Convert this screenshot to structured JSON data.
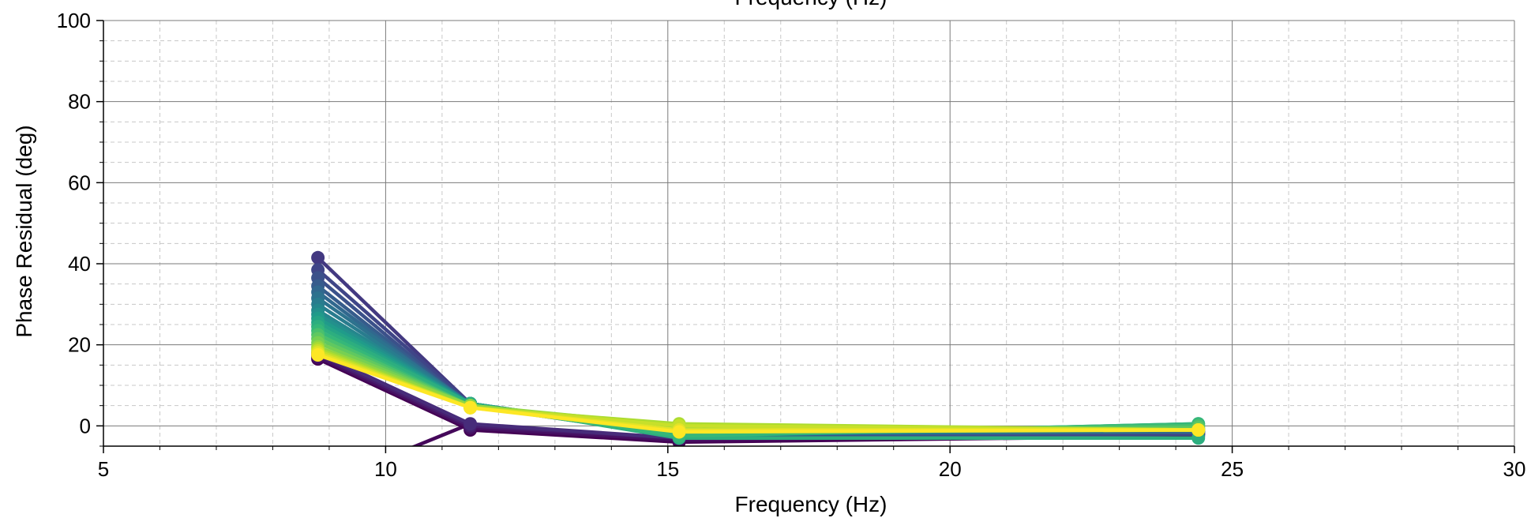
{
  "chart_data": {
    "type": "line",
    "title": "Frequency (Hz)",
    "xlabel": "Frequency (Hz)",
    "ylabel": "Phase Residual (deg)",
    "xlim": [
      5,
      30
    ],
    "ylim": [
      -5,
      100
    ],
    "x_ticks": [
      "5",
      "10",
      "15",
      "20",
      "25",
      "30"
    ],
    "y_ticks": [
      "0",
      "20",
      "40",
      "60",
      "80",
      "100"
    ],
    "x_major": [
      5,
      10,
      15,
      20,
      25,
      30
    ],
    "y_major": [
      0,
      20,
      40,
      60,
      80,
      100
    ],
    "x_minor_step": 1,
    "y_minor_step": 5,
    "grid": true,
    "colormap": [
      "#440154",
      "#482878",
      "#3e4989",
      "#31688e",
      "#26828e",
      "#1f9e89",
      "#35b779",
      "#6ece58",
      "#b5de2b",
      "#fde725"
    ],
    "x": [
      8.8,
      11.5,
      15.2,
      24.4
    ],
    "series": [
      {
        "values": [
          16.5,
          -1.0,
          -4.0,
          -2.5
        ]
      },
      {
        "values": [
          17.0,
          -0.5,
          -3.5,
          -2.0
        ]
      },
      {
        "values": [
          17.5,
          0.0,
          -3.0,
          -2.0
        ]
      },
      {
        "values": [
          18.0,
          0.5,
          -3.0,
          -1.5
        ]
      },
      {
        "values": [
          41.5,
          5.5,
          -2.5,
          -2.0
        ]
      },
      {
        "values": [
          38.5,
          5.5,
          -2.5,
          -2.0
        ]
      },
      {
        "values": [
          36.5,
          5.0,
          -2.5,
          -1.5
        ]
      },
      {
        "values": [
          34.5,
          5.0,
          -2.0,
          -1.5
        ]
      },
      {
        "values": [
          33.0,
          5.0,
          -2.0,
          -1.5
        ]
      },
      {
        "values": [
          31.5,
          5.5,
          -2.0,
          -1.0
        ]
      },
      {
        "values": [
          30.0,
          5.5,
          -2.0,
          -1.0
        ]
      },
      {
        "values": [
          28.5,
          5.5,
          -2.0,
          -1.0
        ]
      },
      {
        "values": [
          27.5,
          5.5,
          -2.0,
          -0.5
        ]
      },
      {
        "values": [
          26.5,
          5.5,
          -2.5,
          0.0
        ]
      },
      {
        "values": [
          25.5,
          5.5,
          -2.5,
          0.5
        ]
      },
      {
        "values": [
          24.5,
          5.5,
          -3.0,
          -3.0
        ]
      },
      {
        "values": [
          23.5,
          5.0,
          -2.5,
          0.5
        ]
      },
      {
        "values": [
          22.5,
          5.0,
          -1.5,
          0.0
        ]
      },
      {
        "values": [
          21.5,
          5.0,
          -1.0,
          -0.5
        ]
      },
      {
        "values": [
          20.5,
          5.0,
          -0.5,
          -1.0
        ]
      },
      {
        "values": [
          19.5,
          5.0,
          0.0,
          -1.0
        ]
      },
      {
        "values": [
          19.0,
          4.5,
          0.5,
          -1.0
        ]
      },
      {
        "values": [
          18.5,
          4.5,
          0.0,
          -1.0
        ]
      },
      {
        "values": [
          18.0,
          4.5,
          -1.0,
          -1.0
        ]
      },
      {
        "values": [
          17.5,
          4.5,
          -1.5,
          -1.0
        ]
      }
    ],
    "extra_series": {
      "x": [
        10.0,
        11.5
      ],
      "values": [
        -8.0,
        0.5
      ]
    }
  }
}
